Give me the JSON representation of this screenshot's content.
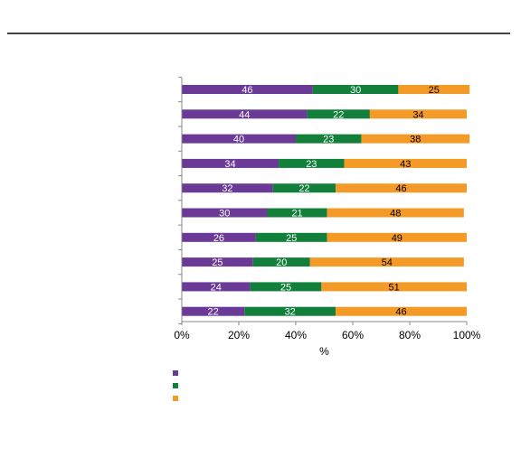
{
  "chart_data": {
    "type": "bar",
    "orientation": "horizontal",
    "stacked": true,
    "title": "",
    "xlabel": "%",
    "ylabel": "",
    "xlim": [
      0,
      100
    ],
    "x_ticks": [
      "0%",
      "20%",
      "40%",
      "60%",
      "80%",
      "100%"
    ],
    "categories": [
      "",
      "",
      "",
      "",
      "",
      "",
      "",
      "",
      "",
      ""
    ],
    "series": [
      {
        "color": "#6a3a96",
        "label_color": "#ffffff",
        "values": [
          46,
          44,
          40,
          34,
          32,
          30,
          26,
          25,
          24,
          22
        ]
      },
      {
        "color": "#12803a",
        "label_color": "#ffffff",
        "values": [
          30,
          22,
          23,
          23,
          22,
          21,
          25,
          20,
          25,
          32
        ]
      },
      {
        "color": "#f49a26",
        "label_color": "#000000",
        "values": [
          25,
          34,
          38,
          43,
          46,
          48,
          49,
          54,
          51,
          46
        ]
      }
    ],
    "grid": false,
    "legend": {
      "placement": "bottom-left",
      "entries": [
        "",
        "",
        ""
      ]
    }
  }
}
